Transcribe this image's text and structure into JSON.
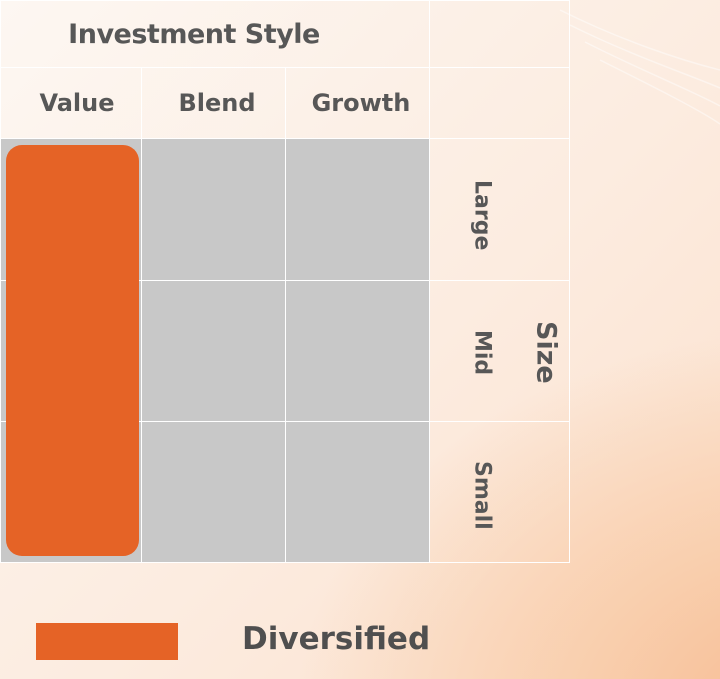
{
  "header": {
    "title": "Investment Style",
    "columns": [
      "Value",
      "Blend",
      "Growth"
    ]
  },
  "rows": {
    "axis_label": "Size",
    "labels": [
      "Large",
      "Mid",
      "Small"
    ]
  },
  "highlight": {
    "column": "Value",
    "color": "#e56326"
  },
  "legend": {
    "label": "Diversified",
    "color": "#e56326"
  },
  "colors": {
    "empty_cell": "#c8c8c8",
    "grid_line": "#ffffff",
    "text": "#575757"
  }
}
